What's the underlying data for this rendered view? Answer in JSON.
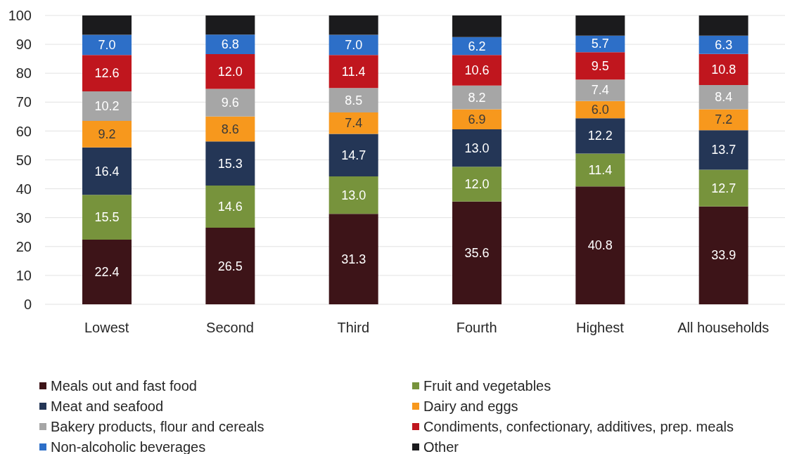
{
  "chart_data": {
    "type": "bar",
    "stacked": true,
    "categories": [
      "Lowest",
      "Second",
      "Third",
      "Fourth",
      "Highest",
      "All households"
    ],
    "series": [
      {
        "name": "Meals out and fast food",
        "color": "#3d1418",
        "values": [
          22.4,
          26.5,
          31.3,
          35.6,
          40.8,
          33.9
        ],
        "value_labels": [
          "22.4",
          "26.5",
          "31.3",
          "35.6",
          "40.8",
          "33.9"
        ]
      },
      {
        "name": "Fruit and vegetables",
        "color": "#77933c",
        "values": [
          15.5,
          14.6,
          13.0,
          12.0,
          11.4,
          12.7
        ],
        "value_labels": [
          "15.5",
          "14.6",
          "13.0",
          "12.0",
          "11.4",
          "12.7"
        ]
      },
      {
        "name": "Meat and seafood",
        "color": "#243656",
        "values": [
          16.4,
          15.3,
          14.7,
          13.0,
          12.2,
          13.7
        ],
        "value_labels": [
          "16.4",
          "15.3",
          "14.7",
          "13.0",
          "12.2",
          "13.7"
        ]
      },
      {
        "name": "Dairy and eggs",
        "color": "#f7981d",
        "values": [
          9.2,
          8.6,
          7.4,
          6.9,
          6.0,
          7.2
        ],
        "value_labels": [
          "9.2",
          "8.6",
          "7.4",
          "6.9",
          "6.0",
          "7.2"
        ]
      },
      {
        "name": "Bakery products, flour and cereals",
        "color": "#a6a6a6",
        "values": [
          10.2,
          9.6,
          8.5,
          8.2,
          7.4,
          8.4
        ],
        "value_labels": [
          "10.2",
          "9.6",
          "8.5",
          "8.2",
          "7.4",
          "8.4"
        ]
      },
      {
        "name": "Condiments, confectionary, additives, prep. meals",
        "color": "#c0161e",
        "values": [
          12.6,
          12.0,
          11.4,
          10.6,
          9.5,
          10.8
        ],
        "value_labels": [
          "12.6",
          "12.0",
          "11.4",
          "10.6",
          "9.5",
          "10.8"
        ]
      },
      {
        "name": "Non-alcoholic beverages",
        "color": "#2d6fc8",
        "values": [
          7.0,
          6.8,
          7.0,
          6.2,
          5.7,
          6.3
        ],
        "value_labels": [
          "7.0",
          "6.8",
          "7.0",
          "6.2",
          "5.7",
          "6.3"
        ]
      },
      {
        "name": "Other",
        "color": "#1b1b1d",
        "values": [
          6.7,
          6.6,
          6.7,
          7.5,
          7.0,
          7.0
        ]
      }
    ],
    "ylim": [
      0,
      100
    ],
    "yticks": [
      0,
      10,
      20,
      30,
      40,
      50,
      60,
      70,
      80,
      90,
      100
    ],
    "grid": "y",
    "legend": "bottom"
  }
}
